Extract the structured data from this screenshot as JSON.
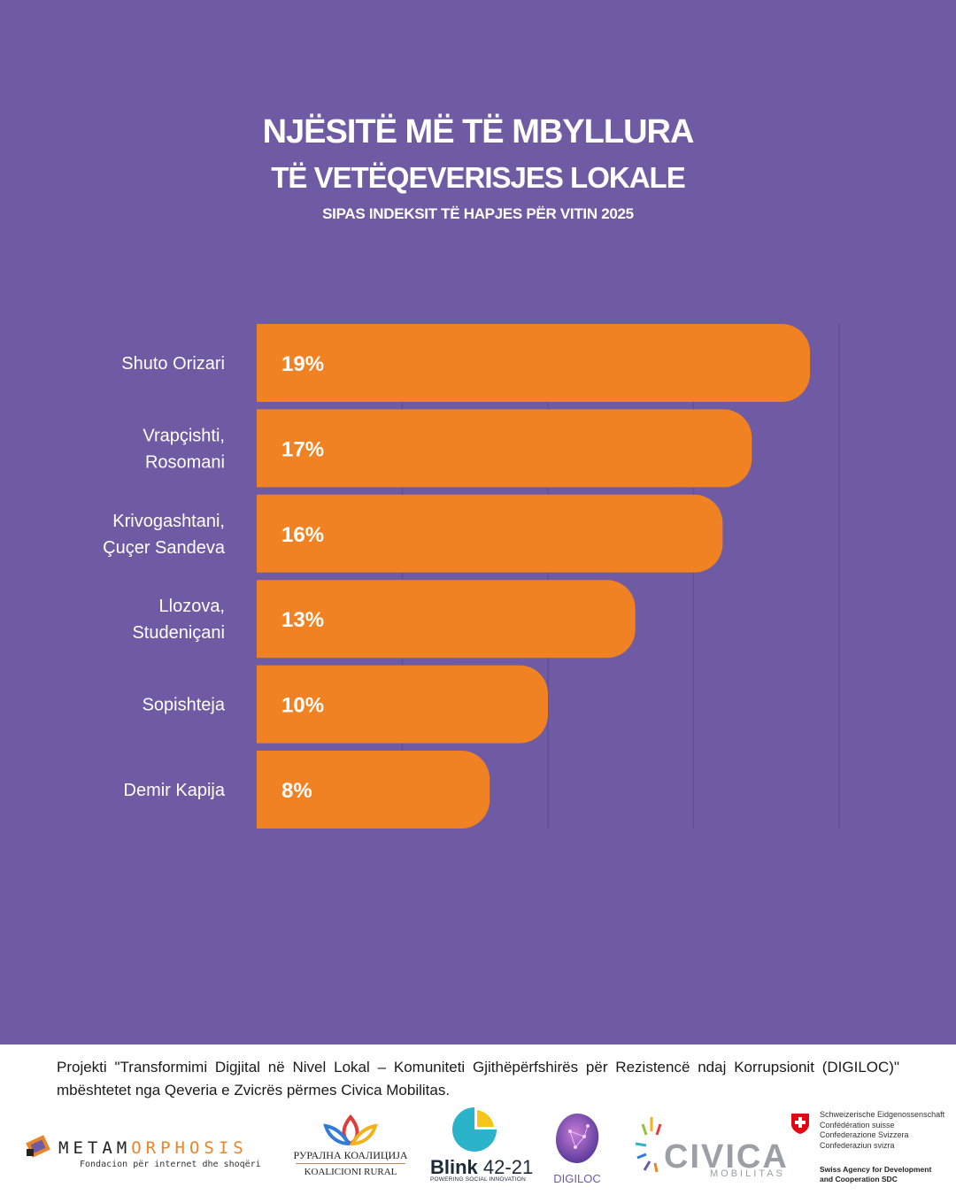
{
  "header": {
    "title_line1": "NJËSITË MË TË MBYLLURA",
    "title_line2": "TË VETËQEVERISJES LOKALE",
    "subtitle": "SIPAS INDEKSIT TË HAPJES PËR VITIN 2025"
  },
  "chart_data": {
    "type": "bar",
    "orientation": "horizontal",
    "categories": [
      [
        "Shuto Orizari"
      ],
      [
        "Vrapçishti,",
        "Rosomani"
      ],
      [
        "Krivogashtani,",
        "Çuçer Sandeva"
      ],
      [
        "Llozova,",
        "Studeniçani"
      ],
      [
        "Sopishteja"
      ],
      [
        "Demir Kapija"
      ]
    ],
    "values": [
      19,
      17,
      16,
      13,
      10,
      8
    ],
    "data_labels": [
      "19%",
      "17%",
      "16%",
      "13%",
      "10%",
      "8%"
    ],
    "xlim": [
      0,
      20
    ],
    "grid": true,
    "colors": {
      "bar": "#f08223",
      "background": "#6e5ba3",
      "grid": "#5f4e95"
    }
  },
  "footer": {
    "text": "Projekti \"Transformimi Digjital në Nivel Lokal – Komuniteti Gjithëpërfshirës për Rezistencë ndaj Korrupsionit (DIGILOC)\" mbështetet nga Qeveria e Zvicrës përmes Civica Mobilitas."
  },
  "logos": {
    "metamorphosis": {
      "word_a": "METAM",
      "word_b": "ORPHOSIS",
      "tagline": "Fondacion për internet dhe shoqëri"
    },
    "rural": {
      "line1": "РУРАЛНА КОАЛИЦИЈА",
      "line2": "KOALICIONI RURAL"
    },
    "blink": {
      "word": "Blink",
      "number": " 42-21",
      "tagline": "POWERING SOCIAL INNOVATION"
    },
    "digiloc": {
      "word": "DIGILOC"
    },
    "civica": {
      "word": "CIVICA",
      "sub": "MOBILITAS"
    },
    "swiss": {
      "line1": "Schweizerische Eidgenossenschaft",
      "line2": "Confédération suisse",
      "line3": "Confederazione Svizzera",
      "line4": "Confederaziun svizra",
      "sdc1": "Swiss Agency for Development",
      "sdc2": "and Cooperation SDC"
    }
  }
}
